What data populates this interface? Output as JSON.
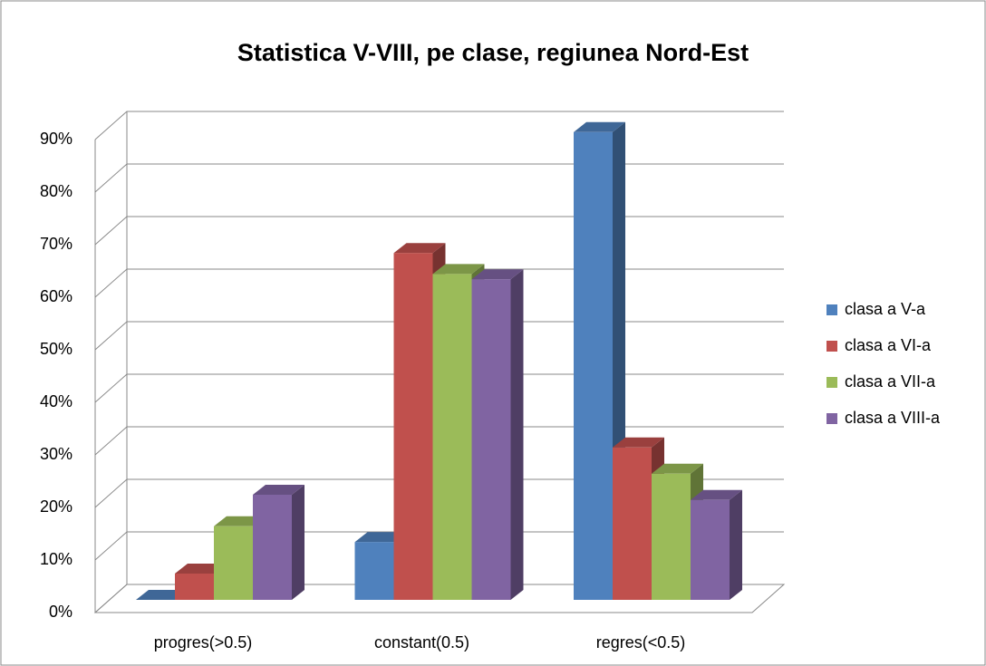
{
  "chart_data": {
    "type": "bar",
    "title": "Statistica V-VIII, pe clase, regiunea Nord-Est",
    "categories": [
      "progres(>0.5)",
      "constant(0.5)",
      "regres(<0.5)"
    ],
    "series": [
      {
        "name": "clasa a V-a",
        "color": "#4f81bd",
        "values": [
          0,
          11,
          89
        ]
      },
      {
        "name": "clasa a VI-a",
        "color": "#c0504d",
        "values": [
          5,
          66,
          29
        ]
      },
      {
        "name": "clasa a VII-a",
        "color": "#9bbb59",
        "values": [
          14,
          62,
          24
        ]
      },
      {
        "name": "clasa a VIII-a",
        "color": "#8064a2",
        "values": [
          20,
          61,
          19
        ]
      }
    ],
    "ylim": [
      0,
      90
    ],
    "yticks": [
      {
        "value": 0,
        "label": "0%"
      },
      {
        "value": 10,
        "label": "10%"
      },
      {
        "value": 20,
        "label": "20%"
      },
      {
        "value": 30,
        "label": "30%"
      },
      {
        "value": 40,
        "label": "40%"
      },
      {
        "value": 50,
        "label": "50%"
      },
      {
        "value": 60,
        "label": "60%"
      },
      {
        "value": 70,
        "label": "70%"
      },
      {
        "value": 80,
        "label": "80%"
      },
      {
        "value": 90,
        "label": "90%"
      }
    ],
    "grid": true,
    "legend": "right"
  }
}
